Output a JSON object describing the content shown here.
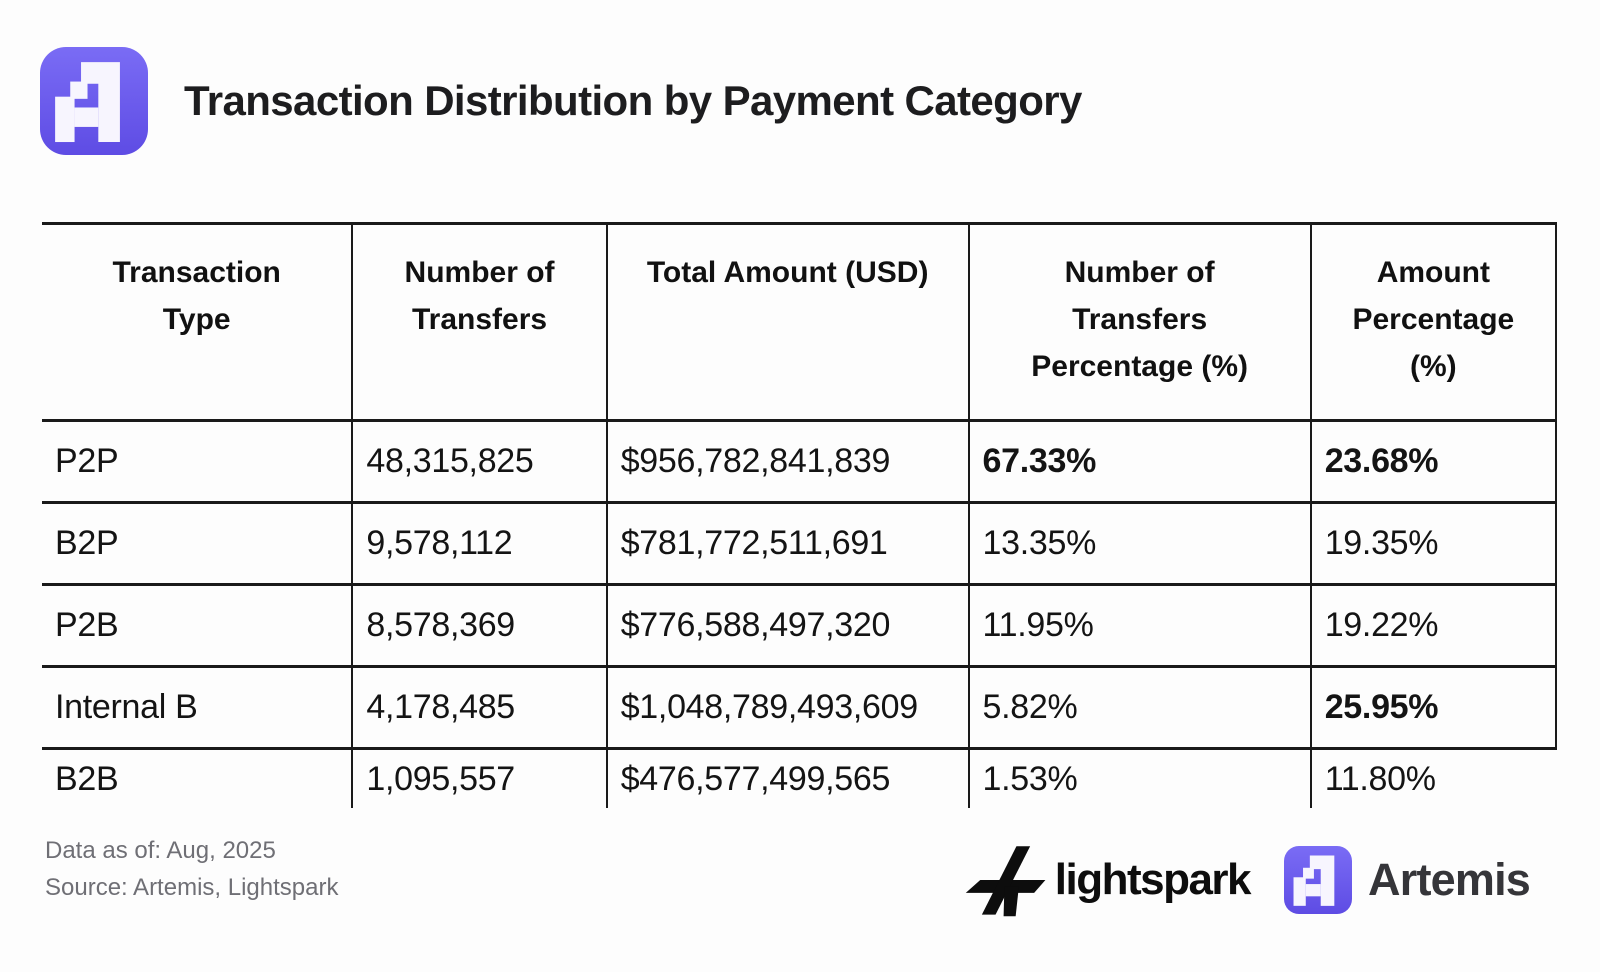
{
  "header": {
    "title": "Transaction Distribution by Payment Category",
    "logo": "artemis-mark"
  },
  "table": {
    "columns": [
      "Transaction\nType",
      "Number of\nTransfers",
      "Total Amount (USD)",
      "Number of\nTransfers\nPercentage (%)",
      "Amount\nPercentage\n(%)"
    ],
    "rows": [
      {
        "cells": [
          "P2P",
          "48,315,825",
          "$956,782,841,839",
          "67.33%",
          "23.68%"
        ],
        "bold": [
          3,
          4
        ]
      },
      {
        "cells": [
          "B2P",
          "9,578,112",
          "$781,772,511,691",
          "13.35%",
          "19.35%"
        ],
        "bold": []
      },
      {
        "cells": [
          "P2B",
          "8,578,369",
          "$776,588,497,320",
          "11.95%",
          "19.22%"
        ],
        "bold": []
      },
      {
        "cells": [
          "Internal B",
          "4,178,485",
          "$1,048,789,493,609",
          "5.82%",
          "25.95%"
        ],
        "bold": [
          4
        ]
      },
      {
        "cells": [
          "B2B",
          "1,095,557",
          "$476,577,499,565",
          "1.53%",
          "11.80%"
        ],
        "bold": []
      }
    ]
  },
  "footer": {
    "data_as_of": "Data as of: Aug, 2025",
    "source": "Source: Artemis, Lightspark",
    "lightspark_label": "lightspark",
    "artemis_label": "Artemis"
  },
  "colors": {
    "brand_purple": "#6B5CEC",
    "brand_purple_dark": "#5E4CE4",
    "brand_purple_light": "#7A6CF5",
    "border": "#1a1a1a",
    "muted_text": "#6f6f75",
    "title_text": "#1d1d1f"
  },
  "chart_data": {
    "type": "table",
    "title": "Transaction Distribution by Payment Category",
    "columns": [
      "Transaction Type",
      "Number of Transfers",
      "Total Amount (USD)",
      "Number of Transfers Percentage (%)",
      "Amount Percentage (%)"
    ],
    "rows": [
      [
        "P2P",
        48315825,
        956782841839,
        67.33,
        23.68
      ],
      [
        "B2P",
        9578112,
        781772511691,
        13.35,
        19.35
      ],
      [
        "P2B",
        8578369,
        776588497320,
        11.95,
        19.22
      ],
      [
        "Internal B",
        4178485,
        1048789493609,
        5.82,
        25.95
      ],
      [
        "B2B",
        1095557,
        476577499565,
        1.53,
        11.8
      ]
    ],
    "notes": "Bold emphasis on P2P transfers % (67.33), P2P amount % (23.68) and Internal B amount % (25.95). Data as of Aug 2025. Source: Artemis, Lightspark."
  }
}
